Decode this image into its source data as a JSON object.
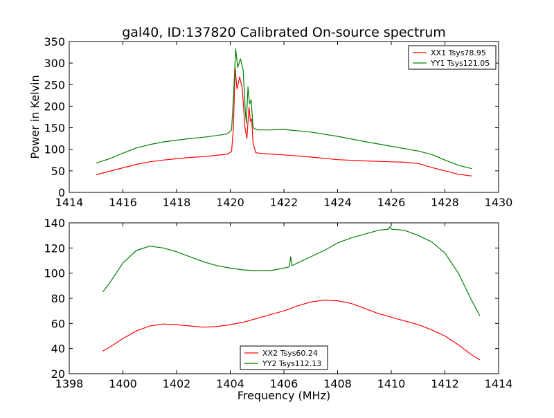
{
  "chart_data": [
    {
      "type": "line",
      "title": "gal40, ID:137820 Calibrated On-source spectrum",
      "xlabel": "",
      "ylabel": "Power in Kelvin",
      "xlim": [
        1414,
        1430
      ],
      "ylim": [
        0,
        350
      ],
      "x_ticks": [
        1414,
        1416,
        1418,
        1420,
        1422,
        1424,
        1426,
        1428,
        1430
      ],
      "y_ticks": [
        0,
        50,
        100,
        150,
        200,
        250,
        300,
        350
      ],
      "grid": false,
      "legend_position": "top-right",
      "series": [
        {
          "name": "XX1 Tsys78.95",
          "color": "#ff0000",
          "points": [
            [
              1415.0,
              41
            ],
            [
              1415.5,
              49
            ],
            [
              1416.0,
              57
            ],
            [
              1416.5,
              65
            ],
            [
              1417.0,
              71
            ],
            [
              1417.5,
              75
            ],
            [
              1418.0,
              78
            ],
            [
              1418.5,
              81
            ],
            [
              1419.0,
              83
            ],
            [
              1419.5,
              86
            ],
            [
              1419.9,
              89
            ],
            [
              1420.05,
              95
            ],
            [
              1420.12,
              150
            ],
            [
              1420.18,
              290
            ],
            [
              1420.25,
              240
            ],
            [
              1420.35,
              268
            ],
            [
              1420.45,
              240
            ],
            [
              1420.55,
              150
            ],
            [
              1420.62,
              125
            ],
            [
              1420.7,
              198
            ],
            [
              1420.75,
              165
            ],
            [
              1420.8,
              170
            ],
            [
              1420.85,
              115
            ],
            [
              1420.95,
              92
            ],
            [
              1421.2,
              90
            ],
            [
              1421.5,
              89
            ],
            [
              1422.0,
              87
            ],
            [
              1423.0,
              82
            ],
            [
              1424.0,
              76
            ],
            [
              1425.0,
              73
            ],
            [
              1426.0,
              71
            ],
            [
              1426.5,
              70
            ],
            [
              1427.0,
              67
            ],
            [
              1427.5,
              58
            ],
            [
              1428.0,
              50
            ],
            [
              1428.5,
              42
            ],
            [
              1429.0,
              38
            ]
          ]
        },
        {
          "name": "YY1 Tsys121.05",
          "color": "#008000",
          "points": [
            [
              1415.0,
              68
            ],
            [
              1415.5,
              78
            ],
            [
              1416.0,
              91
            ],
            [
              1416.5,
              103
            ],
            [
              1417.0,
              111
            ],
            [
              1417.5,
              117
            ],
            [
              1418.0,
              121
            ],
            [
              1418.5,
              125
            ],
            [
              1419.0,
              128
            ],
            [
              1419.5,
              132
            ],
            [
              1419.9,
              136
            ],
            [
              1420.05,
              145
            ],
            [
              1420.12,
              220
            ],
            [
              1420.2,
              333
            ],
            [
              1420.28,
              290
            ],
            [
              1420.38,
              310
            ],
            [
              1420.48,
              285
            ],
            [
              1420.56,
              190
            ],
            [
              1420.6,
              160
            ],
            [
              1420.66,
              245
            ],
            [
              1420.72,
              205
            ],
            [
              1420.78,
              215
            ],
            [
              1420.85,
              150
            ],
            [
              1421.0,
              145
            ],
            [
              1421.5,
              145
            ],
            [
              1422.0,
              146
            ],
            [
              1423.0,
              140
            ],
            [
              1424.0,
              130
            ],
            [
              1425.0,
              118
            ],
            [
              1426.0,
              107
            ],
            [
              1427.0,
              96
            ],
            [
              1427.5,
              88
            ],
            [
              1428.0,
              75
            ],
            [
              1428.5,
              63
            ],
            [
              1429.0,
              55
            ]
          ]
        }
      ]
    },
    {
      "type": "line",
      "title": "",
      "xlabel": "Frequency (MHz)",
      "ylabel": "",
      "xlim": [
        1398,
        1414
      ],
      "ylim": [
        20,
        140
      ],
      "x_ticks": [
        1398,
        1400,
        1402,
        1404,
        1406,
        1408,
        1410,
        1412,
        1414
      ],
      "y_ticks": [
        20,
        40,
        60,
        80,
        100,
        120,
        140
      ],
      "grid": false,
      "legend_position": "bottom-center",
      "series": [
        {
          "name": "XX2 Tsys60.24",
          "color": "#ff0000",
          "points": [
            [
              1399.25,
              38
            ],
            [
              1399.5,
              41
            ],
            [
              1400.0,
              48
            ],
            [
              1400.5,
              54
            ],
            [
              1401.0,
              58
            ],
            [
              1401.5,
              59.5
            ],
            [
              1402.0,
              59
            ],
            [
              1402.5,
              58
            ],
            [
              1403.0,
              57
            ],
            [
              1403.5,
              57.5
            ],
            [
              1404.0,
              59
            ],
            [
              1404.5,
              61
            ],
            [
              1405.0,
              64
            ],
            [
              1405.5,
              67
            ],
            [
              1406.0,
              70
            ],
            [
              1406.5,
              74
            ],
            [
              1407.0,
              77
            ],
            [
              1407.5,
              78.5
            ],
            [
              1408.0,
              78
            ],
            [
              1408.5,
              76
            ],
            [
              1409.0,
              72
            ],
            [
              1409.5,
              68
            ],
            [
              1410.0,
              65
            ],
            [
              1410.5,
              62
            ],
            [
              1411.0,
              59
            ],
            [
              1411.5,
              55
            ],
            [
              1412.0,
              50
            ],
            [
              1412.5,
              43
            ],
            [
              1413.0,
              35
            ],
            [
              1413.3,
              31
            ]
          ]
        },
        {
          "name": "YY2 Tsys112.13",
          "color": "#008000",
          "points": [
            [
              1399.25,
              85
            ],
            [
              1399.5,
              92
            ],
            [
              1400.0,
              108
            ],
            [
              1400.5,
              118
            ],
            [
              1401.0,
              121.5
            ],
            [
              1401.5,
              120
            ],
            [
              1402.0,
              117
            ],
            [
              1402.5,
              113
            ],
            [
              1403.0,
              109
            ],
            [
              1403.5,
              106
            ],
            [
              1404.0,
              104
            ],
            [
              1404.5,
              102.5
            ],
            [
              1405.0,
              102
            ],
            [
              1405.5,
              102
            ],
            [
              1406.0,
              104
            ],
            [
              1406.2,
              105
            ],
            [
              1406.25,
              113
            ],
            [
              1406.3,
              106
            ],
            [
              1406.5,
              108
            ],
            [
              1407.0,
              113
            ],
            [
              1407.5,
              118
            ],
            [
              1408.0,
              124
            ],
            [
              1408.5,
              128
            ],
            [
              1409.0,
              131
            ],
            [
              1409.5,
              134
            ],
            [
              1409.9,
              135
            ],
            [
              1409.95,
              137
            ],
            [
              1410.0,
              135
            ],
            [
              1410.5,
              134
            ],
            [
              1411.0,
              130
            ],
            [
              1411.5,
              125
            ],
            [
              1412.0,
              116
            ],
            [
              1412.5,
              100
            ],
            [
              1413.0,
              78
            ],
            [
              1413.3,
              66
            ]
          ]
        }
      ]
    }
  ]
}
